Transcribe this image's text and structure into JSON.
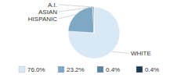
{
  "chart_data": {
    "type": "pie",
    "categories": [
      "WHITE",
      "HISPANIC",
      "ASIAN",
      "A.I."
    ],
    "values": [
      76.0,
      23.2,
      0.4,
      0.4
    ],
    "value_labels": [
      "76.0%",
      "23.2%",
      "0.4%",
      "0.4%"
    ],
    "colors": [
      "#d9e8f5",
      "#7fa8c4",
      "#5b84a0",
      "#1e3a52"
    ],
    "legend": "bottom"
  }
}
